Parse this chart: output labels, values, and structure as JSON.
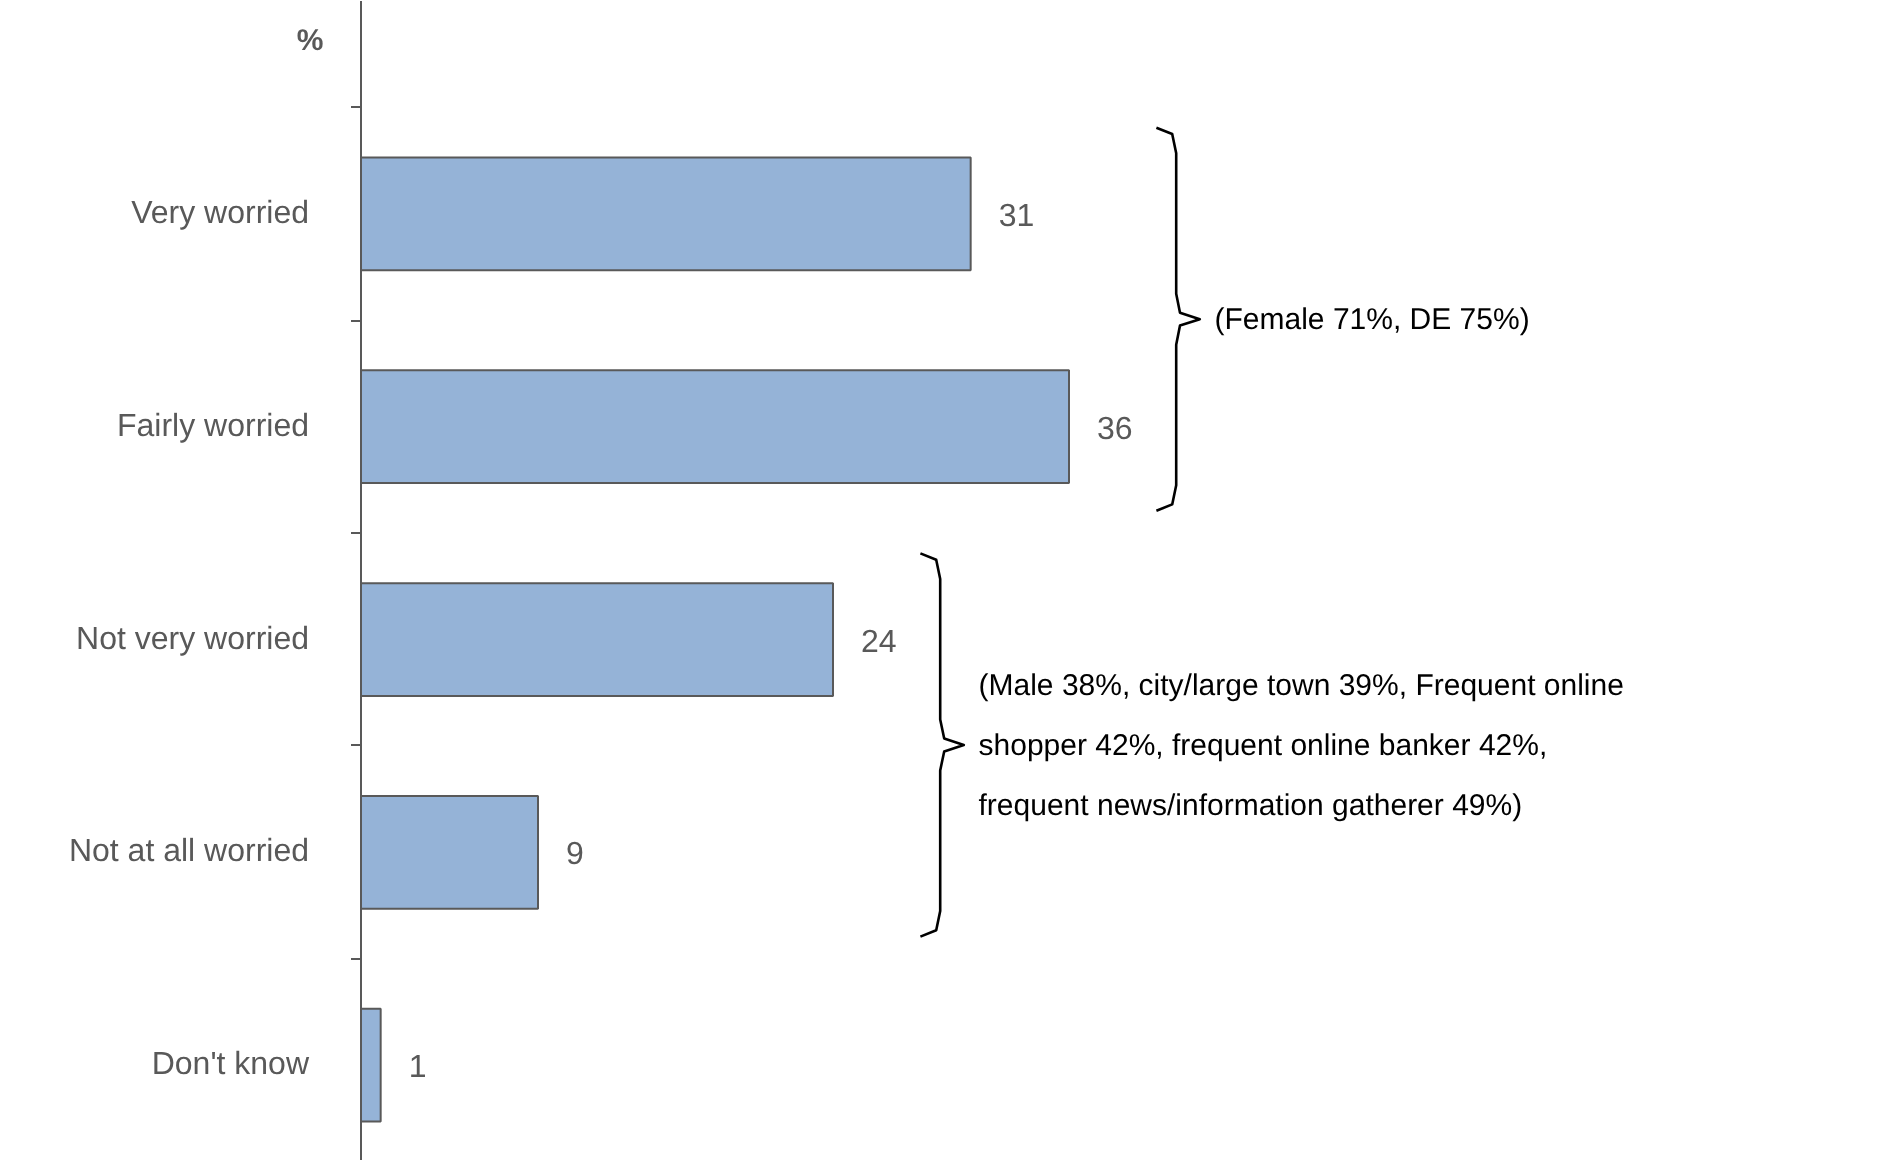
{
  "chart_data": {
    "type": "bar",
    "orientation": "horizontal",
    "ylabel": "%",
    "categories": [
      "Very worried",
      "Fairly worried",
      "Not very worried",
      "Not at all worried",
      "Don't know"
    ],
    "values": [
      31,
      36,
      24,
      9,
      1
    ],
    "color": "#95b3d7",
    "data_labels": true,
    "grid": false,
    "annotations": [
      "(Female 71%, DE 75%)",
      "(Male 38%, city/large town 39%, Frequent online shopper 42%, frequent online banker 42%, frequent news/information gatherer 49%)"
    ]
  }
}
